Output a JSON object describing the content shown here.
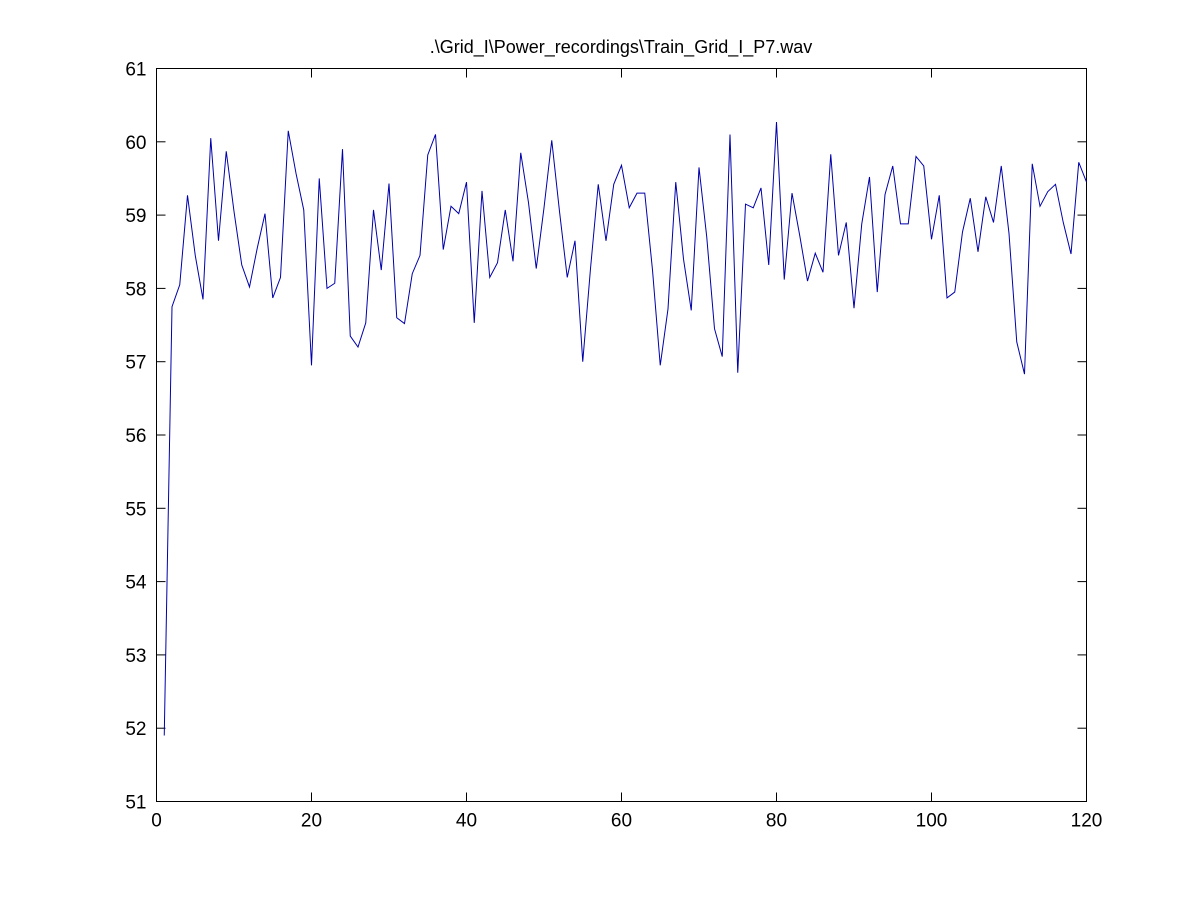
{
  "figure": {
    "background": "#ffffff"
  },
  "chart_data": {
    "type": "line",
    "title": ".\\Grid_I\\Power_recordings\\Train_Grid_I_P7.wav",
    "xlabel": "",
    "ylabel": "",
    "xlim": [
      0,
      120
    ],
    "ylim": [
      51,
      61
    ],
    "xticks": [
      0,
      20,
      40,
      60,
      80,
      100,
      120
    ],
    "yticks": [
      51,
      52,
      53,
      54,
      55,
      56,
      57,
      58,
      59,
      60,
      61
    ],
    "grid": false,
    "series": [
      {
        "color": "#0000aa",
        "x": [
          1,
          2,
          3,
          4,
          5,
          6,
          7,
          8,
          9,
          10,
          11,
          12,
          13,
          14,
          15,
          16,
          17,
          18,
          19,
          20,
          21,
          22,
          23,
          24,
          25,
          26,
          27,
          28,
          29,
          30,
          31,
          32,
          33,
          34,
          35,
          36,
          37,
          38,
          39,
          40,
          41,
          42,
          43,
          44,
          45,
          46,
          47,
          48,
          49,
          50,
          51,
          52,
          53,
          54,
          55,
          56,
          57,
          58,
          59,
          60,
          61,
          62,
          63,
          64,
          65,
          66,
          67,
          68,
          69,
          70,
          71,
          72,
          73,
          74,
          75,
          76,
          77,
          78,
          79,
          80,
          81,
          82,
          83,
          84,
          85,
          86,
          87,
          88,
          89,
          90,
          91,
          92,
          93,
          94,
          95,
          96,
          97,
          98,
          99,
          100,
          101,
          102,
          103,
          104,
          105,
          106,
          107,
          108,
          109,
          110,
          111,
          112,
          113,
          114,
          115,
          116,
          117,
          118,
          119,
          120
        ],
        "y": [
          51.9,
          57.75,
          58.05,
          59.27,
          58.45,
          57.85,
          60.05,
          58.65,
          59.87,
          59.05,
          58.32,
          58.02,
          58.55,
          59.02,
          57.87,
          58.15,
          60.15,
          59.57,
          59.07,
          56.95,
          59.5,
          58.0,
          58.07,
          59.9,
          57.35,
          57.2,
          57.53,
          59.07,
          58.25,
          59.43,
          57.6,
          57.52,
          58.2,
          58.45,
          59.82,
          60.1,
          58.53,
          59.12,
          59.02,
          59.45,
          57.53,
          59.33,
          58.15,
          58.35,
          59.07,
          58.37,
          59.85,
          59.17,
          58.27,
          59.1,
          60.02,
          59.05,
          58.15,
          58.65,
          57.0,
          58.27,
          59.42,
          58.65,
          59.42,
          59.68,
          59.1,
          59.3,
          59.3,
          58.25,
          56.95,
          57.72,
          59.45,
          58.4,
          57.7,
          59.65,
          58.7,
          57.45,
          57.07,
          60.1,
          56.85,
          59.15,
          59.1,
          59.37,
          58.32,
          60.27,
          58.12,
          59.3,
          58.72,
          58.1,
          58.48,
          58.22,
          59.83,
          58.45,
          58.9,
          57.73,
          58.88,
          59.52,
          57.95,
          59.28,
          59.67,
          58.88,
          58.88,
          59.8,
          59.67,
          58.67,
          59.27,
          57.87,
          57.95,
          58.77,
          59.23,
          58.5,
          59.25,
          58.9,
          59.67,
          58.75,
          57.27,
          56.83,
          59.7,
          59.12,
          59.32,
          59.42,
          58.9,
          58.47,
          59.72,
          59.45
        ]
      }
    ]
  }
}
